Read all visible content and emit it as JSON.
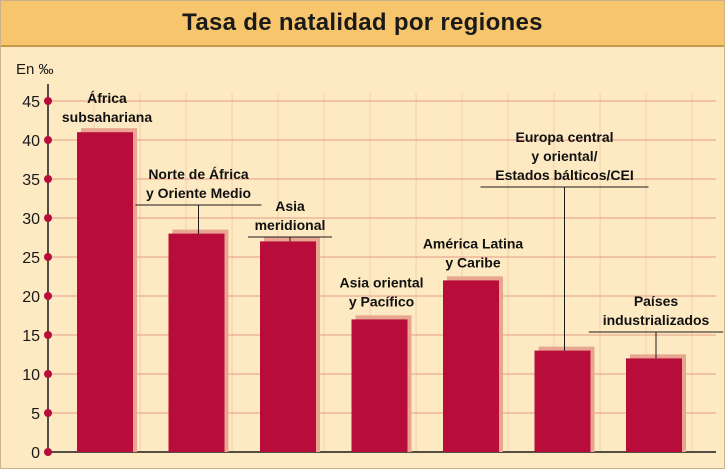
{
  "chart_data": {
    "type": "bar",
    "title": "Tasa de natalidad por regiones",
    "ylabel": "En ‰",
    "ylim": [
      0,
      45
    ],
    "yticks": [
      0,
      5,
      10,
      15,
      20,
      25,
      30,
      35,
      40,
      45
    ],
    "grid": true,
    "categories": [
      [
        "África",
        "subsahariana"
      ],
      [
        "Norte de África",
        "y Oriente Medio"
      ],
      [
        "Asia",
        "meridional"
      ],
      [
        "Asia oriental",
        "y Pacífico"
      ],
      [
        "América Latina",
        "y Caribe"
      ],
      [
        "Europa central",
        "y oriental/",
        "Estados bálticos/CEI"
      ],
      [
        "Países",
        "industrializados"
      ]
    ],
    "values": [
      41,
      28,
      27,
      17,
      22,
      13,
      12
    ]
  },
  "colors": {
    "bar": "#b80d3a",
    "bar_shadow": "#e8a690",
    "grid": "#e59a86",
    "axis": "#1a1a1a",
    "tick_dot": "#b80d3a"
  }
}
